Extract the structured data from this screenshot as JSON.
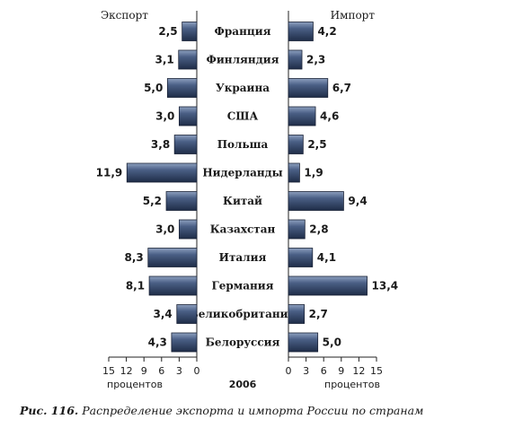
{
  "chart_data": {
    "type": "bar",
    "categories": [
      "Франция",
      "Финляндия",
      "Украина",
      "США",
      "Польша",
      "Нидерланды",
      "Китай",
      "Казахстан",
      "Италия",
      "Германия",
      "Великобритания",
      "Белоруссия"
    ],
    "series": [
      {
        "name": "Экспорт",
        "values": [
          2.5,
          3.1,
          5.0,
          3.0,
          3.8,
          11.9,
          5.2,
          3.0,
          8.3,
          8.1,
          3.4,
          4.3
        ],
        "labels": [
          "2,5",
          "3,1",
          "5,0",
          "3,0",
          "3,8",
          "11,9",
          "5,2",
          "3,0",
          "8,3",
          "8,1",
          "3,4",
          "4,3"
        ]
      },
      {
        "name": "Импорт",
        "values": [
          4.2,
          2.3,
          6.7,
          4.6,
          2.5,
          1.9,
          9.4,
          2.8,
          4.1,
          13.4,
          2.7,
          5.0
        ],
        "labels": [
          "4,2",
          "2,3",
          "6,7",
          "4,6",
          "2,5",
          "1,9",
          "9,4",
          "2,8",
          "4,1",
          "13,4",
          "2,7",
          "5,0"
        ]
      }
    ],
    "left_header": "Экспорт",
    "right_header": "Импорт",
    "left_ticks": [
      "15",
      "12",
      "9",
      "6",
      "3",
      "0"
    ],
    "right_ticks": [
      "0",
      "3",
      "6",
      "9",
      "12",
      "15"
    ],
    "xlim": [
      0,
      15
    ],
    "left_xlabel": "процентов",
    "right_xlabel": "процентов",
    "center_label": "2006",
    "bar_color": "#3f5478"
  },
  "caption": {
    "prefix": "Рис. 116.",
    "text": "Распределение экспорта и импорта России по странам"
  }
}
